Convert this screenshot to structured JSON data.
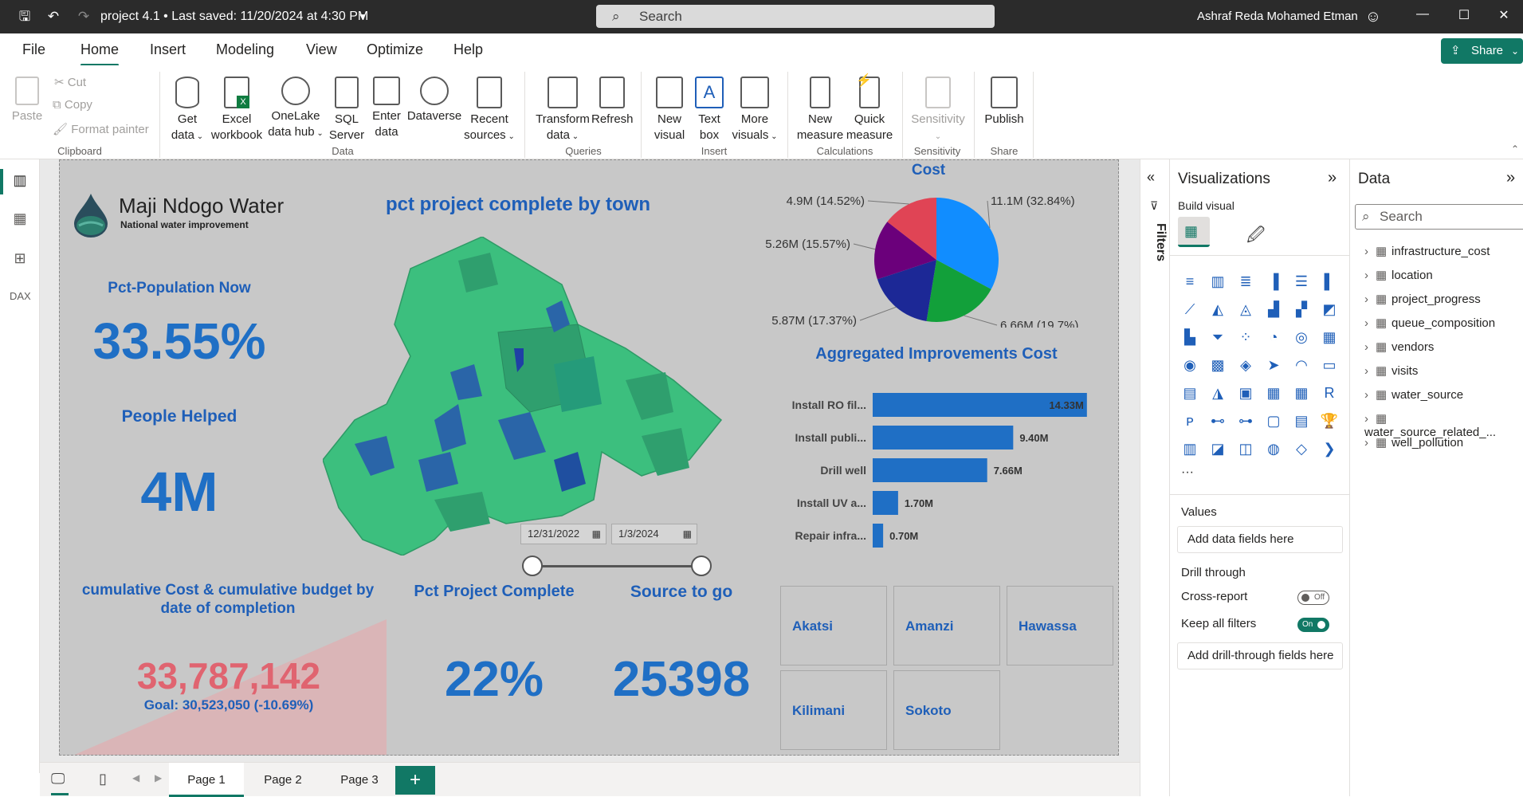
{
  "titlebar": {
    "title": "project 4.1 • Last saved: 11/20/2024 at 4:30 PM",
    "search_placeholder": "Search",
    "user": "Ashraf Reda Mohamed Etman"
  },
  "menu": {
    "items": [
      "File",
      "Home",
      "Insert",
      "Modeling",
      "View",
      "Optimize",
      "Help"
    ],
    "active": "Home",
    "share_label": "Share"
  },
  "ribbon": {
    "clipboard": {
      "paste": "Paste",
      "cut": "Cut",
      "copy": "Copy",
      "format_painter": "Format painter",
      "group": "Clipboard"
    },
    "data": {
      "get_data": [
        "Get",
        "data"
      ],
      "excel": [
        "Excel",
        "workbook"
      ],
      "onelake": [
        "OneLake",
        "data hub"
      ],
      "sql": [
        "SQL",
        "Server"
      ],
      "enter": [
        "Enter",
        "data"
      ],
      "dataverse": "Dataverse",
      "recent": [
        "Recent",
        "sources"
      ],
      "group": "Data"
    },
    "queries": {
      "transform": [
        "Transform",
        "data"
      ],
      "refresh": "Refresh",
      "group": "Queries"
    },
    "insert": {
      "new_visual": [
        "New",
        "visual"
      ],
      "text_box": [
        "Text",
        "box"
      ],
      "more_visuals": [
        "More",
        "visuals"
      ],
      "group": "Insert"
    },
    "calculations": {
      "new_measure": [
        "New",
        "measure"
      ],
      "quick_measure": [
        "Quick",
        "measure"
      ],
      "group": "Calculations"
    },
    "sensitivity": {
      "label": "Sensitivity",
      "group": "Sensitivity"
    },
    "share": {
      "publish": "Publish",
      "group": "Share"
    }
  },
  "report": {
    "logo": {
      "name": "Maji Ndogo Water",
      "tagline": "National water improvement"
    },
    "map_title": "pct project complete by town",
    "pct_population": {
      "title": "Pct-Population Now",
      "value": "33.55%"
    },
    "people_helped": {
      "title": "People Helped",
      "value": "4M"
    },
    "cumulative": {
      "title": "cumulative Cost & cumulative budget by date of completion",
      "value": "33,787,142",
      "goal": "Goal: 30,523,050 (-10.69%)"
    },
    "pct_project": {
      "title": "Pct Project Complete",
      "value": "22%"
    },
    "source_to_go": {
      "title": "Source to go",
      "value": "25398"
    },
    "date_slicer": {
      "start": "12/31/2022",
      "end": "1/3/2024"
    },
    "towns": [
      "Akatsi",
      "Amanzi",
      "Hawassa",
      "Kilimani",
      "Sokoto"
    ]
  },
  "chart_data": [
    {
      "type": "pie",
      "title": "Cost",
      "slices": [
        {
          "label": "11.1M (32.84%)",
          "value": 11.1,
          "color": "#118dff"
        },
        {
          "label": "6.66M (19.7%)",
          "value": 6.66,
          "color": "#12a03a"
        },
        {
          "label": "5.87M (17.37%)",
          "value": 5.87,
          "color": "#1c2896"
        },
        {
          "label": "5.26M (15.57%)",
          "value": 5.26,
          "color": "#6b007b"
        },
        {
          "label": "4.9M (14.52%)",
          "value": 4.9,
          "color": "#e04455"
        }
      ]
    },
    {
      "type": "bar",
      "orientation": "horizontal",
      "title": "Aggregated Improvements Cost",
      "categories": [
        "Install RO fil...",
        "Install publi...",
        "Drill well",
        "Install UV a...",
        "Repair infra..."
      ],
      "values": [
        14.33,
        9.4,
        7.66,
        1.7,
        0.7
      ],
      "data_labels": [
        "14.33M",
        "9.40M",
        "7.66M",
        "1.70M",
        "0.70M"
      ],
      "xticks": [
        "0.0M",
        "10.0M"
      ],
      "xlim": [
        0,
        14.5
      ],
      "color": "#1f6fc5"
    }
  ],
  "pages": [
    "Page 1",
    "Page 2",
    "Page 3"
  ],
  "filters": {
    "label": "Filters"
  },
  "visualizations": {
    "title": "Visualizations",
    "build_visual": "Build visual",
    "values_label": "Values",
    "values_placeholder": "Add data fields here",
    "drill_through": "Drill through",
    "cross_report": "Cross-report",
    "cross_report_state": "Off",
    "keep_filters": "Keep all filters",
    "keep_filters_state": "On",
    "drill_placeholder": "Add drill-through fields here"
  },
  "data_pane": {
    "title": "Data",
    "search_placeholder": "Search",
    "tables": [
      "infrastructure_cost",
      "location",
      "project_progress",
      "queue_composition",
      "vendors",
      "visits",
      "water_source",
      "water_source_related_...",
      "well_pollution"
    ]
  }
}
